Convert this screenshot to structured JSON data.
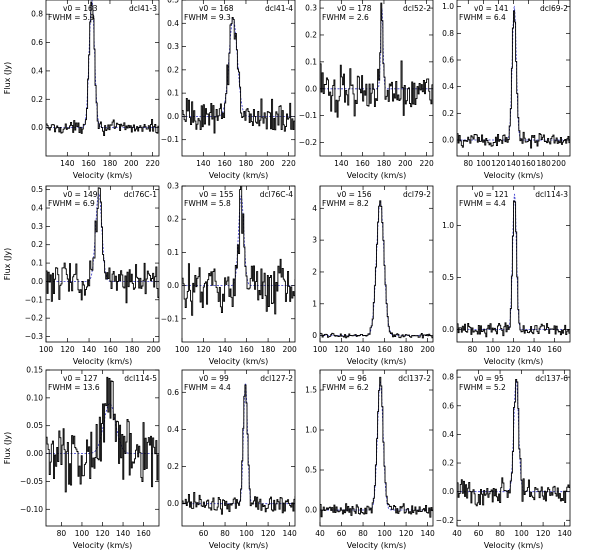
{
  "figure": {
    "ylabel": "Flux (Jy)",
    "xlabel": "Velocity (km/s)",
    "colors": {
      "spectrum": "#000000",
      "fit": "#3333cc",
      "frame": "#000000"
    }
  },
  "chart_data": [
    {
      "type": "line",
      "name": "dcl41-3",
      "v0_label": "v0 = 163",
      "fwhm_label": "FWHM = 5.9",
      "v0": 163,
      "fwhm": 5.9,
      "peak": 0.9,
      "noise": 0.03,
      "base": 0.0,
      "xlim": [
        120,
        226
      ],
      "ylim": [
        -0.2,
        0.9
      ],
      "xticks": [
        140,
        160,
        180,
        200,
        220
      ],
      "yticks": [
        0.0,
        0.2,
        0.4,
        0.6,
        0.8
      ],
      "ytick_labels": [
        "0.0",
        "0.2",
        "0.4",
        "0.6",
        "0.8"
      ],
      "xlabel": "Velocity (km/s)",
      "ylabel": "Flux (Jy)"
    },
    {
      "type": "line",
      "name": "dcl41-4",
      "v0_label": "v0 = 168",
      "fwhm_label": "FWHM = 9.3",
      "v0": 168,
      "fwhm": 9.3,
      "peak": 0.42,
      "noise": 0.05,
      "base": 0.0,
      "xlim": [
        120,
        226
      ],
      "ylim": [
        -0.17,
        0.5
      ],
      "xticks": [
        140,
        160,
        180,
        200,
        220
      ],
      "yticks": [
        -0.1,
        0.0,
        0.1,
        0.2,
        0.3,
        0.4,
        0.5
      ],
      "ytick_labels": [
        "−0.1",
        "0.0",
        "0.1",
        "0.2",
        "0.3",
        "0.4",
        "0.5"
      ],
      "xlabel": "Velocity (km/s)",
      "ylabel": ""
    },
    {
      "type": "line",
      "name": "dcl52-2",
      "v0_label": "v0 = 178",
      "fwhm_label": "FWHM = 2.6",
      "v0": 178,
      "fwhm": 2.6,
      "peak": 0.3,
      "noise": 0.06,
      "base": 0.0,
      "xlim": [
        120,
        226
      ],
      "ylim": [
        -0.25,
        0.33
      ],
      "xticks": [
        140,
        160,
        180,
        200,
        220
      ],
      "yticks": [
        -0.2,
        -0.1,
        0.0,
        0.1,
        0.2,
        0.3
      ],
      "ytick_labels": [
        "−0.2",
        "−0.1",
        "0.0",
        "0.1",
        "0.2",
        "0.3"
      ],
      "xlabel": "Velocity (km/s)",
      "ylabel": ""
    },
    {
      "type": "line",
      "name": "dcl69-2",
      "v0_label": "v0 = 141",
      "fwhm_label": "FWHM = 6.4",
      "v0": 141,
      "fwhm": 6.4,
      "peak": 1.0,
      "noise": 0.04,
      "base": 0.0,
      "xlim": [
        65,
        215
      ],
      "ylim": [
        -0.12,
        1.05
      ],
      "xticks": [
        80,
        100,
        120,
        140,
        160,
        180,
        200
      ],
      "yticks": [
        0.0,
        0.2,
        0.4,
        0.6,
        0.8,
        1.0
      ],
      "ytick_labels": [
        "0.0",
        "0.2",
        "0.4",
        "0.6",
        "0.8",
        "1.0"
      ],
      "xlabel": "Velocity (km/s)",
      "ylabel": ""
    },
    {
      "type": "line",
      "name": "dcl76C-1",
      "v0_label": "v0 = 149",
      "fwhm_label": "FWHM = 6.9",
      "v0": 149,
      "fwhm": 6.9,
      "peak": 0.48,
      "noise": 0.07,
      "base": 0.0,
      "xlim": [
        100,
        205
      ],
      "ylim": [
        -0.33,
        0.52
      ],
      "xticks": [
        100,
        120,
        140,
        160,
        180,
        200
      ],
      "yticks": [
        -0.3,
        -0.2,
        -0.1,
        0.0,
        0.1,
        0.2,
        0.3,
        0.4,
        0.5
      ],
      "ytick_labels": [
        "−0.3",
        "−0.2",
        "−0.1",
        "0.0",
        "0.1",
        "0.2",
        "0.3",
        "0.4",
        "0.5"
      ],
      "xlabel": "Velocity (km/s)",
      "ylabel": "Flux (Jy)"
    },
    {
      "type": "line",
      "name": "dcl76C-4",
      "v0_label": "v0 = 155",
      "fwhm_label": "FWHM = 5.8",
      "v0": 155,
      "fwhm": 5.8,
      "peak": 0.27,
      "noise": 0.05,
      "base": 0.0,
      "xlim": [
        100,
        205
      ],
      "ylim": [
        -0.17,
        0.3
      ],
      "xticks": [
        100,
        120,
        140,
        160,
        180,
        200
      ],
      "yticks": [
        -0.1,
        0.0,
        0.1,
        0.2,
        0.3
      ],
      "ytick_labels": [
        "−0.1",
        "0.0",
        "0.1",
        "0.2",
        "0.3"
      ],
      "xlabel": "Velocity (km/s)",
      "ylabel": ""
    },
    {
      "type": "line",
      "name": "dcl79-2",
      "v0_label": "v0 = 156",
      "fwhm_label": "FWHM = 8.2",
      "v0": 156,
      "fwhm": 8.2,
      "peak": 4.2,
      "noise": 0.05,
      "base": 0.0,
      "xlim": [
        100,
        205
      ],
      "ylim": [
        -0.2,
        4.7
      ],
      "xticks": [
        100,
        120,
        140,
        160,
        180,
        200
      ],
      "yticks": [
        0,
        1,
        2,
        3,
        4
      ],
      "ytick_labels": [
        "0",
        "1",
        "2",
        "3",
        "4"
      ],
      "xlabel": "Velocity (km/s)",
      "ylabel": ""
    },
    {
      "type": "line",
      "name": "dcl114-3",
      "v0_label": "v0 = 121",
      "fwhm_label": "FWHM = 4.4",
      "v0": 121,
      "fwhm": 4.4,
      "peak": 1.3,
      "noise": 0.05,
      "base": 0.0,
      "xlim": [
        65,
        175
      ],
      "ylim": [
        -0.12,
        1.38
      ],
      "xticks": [
        80,
        100,
        120,
        140,
        160
      ],
      "yticks": [
        0.0,
        0.5,
        1.0
      ],
      "ytick_labels": [
        "0.0",
        "0.5",
        "1.0"
      ],
      "xlabel": "Velocity (km/s)",
      "ylabel": ""
    },
    {
      "type": "line",
      "name": "dcl114-5",
      "v0_label": "v0 = 127",
      "fwhm_label": "FWHM = 13.6",
      "v0": 127,
      "fwhm": 13.6,
      "peak": 0.09,
      "noise": 0.04,
      "base": 0.0,
      "xlim": [
        65,
        175
      ],
      "ylim": [
        -0.13,
        0.15
      ],
      "xticks": [
        80,
        100,
        120,
        140,
        160
      ],
      "yticks": [
        -0.1,
        -0.05,
        0.0,
        0.05,
        0.1,
        0.15
      ],
      "ytick_labels": [
        "−0.10",
        "−0.05",
        "0.00",
        "0.05",
        "0.10",
        "0.15"
      ],
      "xlabel": "Velocity (km/s)",
      "ylabel": "Flux (Jy)"
    },
    {
      "type": "line",
      "name": "dcl127-2",
      "v0_label": "v0 = 99",
      "fwhm_label": "FWHM = 4.4",
      "v0": 99,
      "fwhm": 4.4,
      "peak": 0.65,
      "noise": 0.04,
      "base": 0.0,
      "xlim": [
        40,
        145
      ],
      "ylim": [
        -0.12,
        0.72
      ],
      "xticks": [
        60,
        80,
        100,
        120,
        140
      ],
      "yticks": [
        0.0,
        0.2,
        0.4,
        0.6
      ],
      "ytick_labels": [
        "0.0",
        "0.2",
        "0.4",
        "0.6"
      ],
      "xlabel": "Velocity (km/s)",
      "ylabel": ""
    },
    {
      "type": "line",
      "name": "dcl137-2",
      "v0_label": "v0 = 96",
      "fwhm_label": "FWHM = 6.2",
      "v0": 96,
      "fwhm": 6.2,
      "peak": 1.6,
      "noise": 0.05,
      "base": 0.0,
      "xlim": [
        40,
        145
      ],
      "ylim": [
        -0.2,
        1.75
      ],
      "xticks": [
        40,
        60,
        80,
        100,
        120,
        140
      ],
      "yticks": [
        0.0,
        0.5,
        1.0,
        1.5
      ],
      "ytick_labels": [
        "0.0",
        "0.5",
        "1.0",
        "1.5"
      ],
      "xlabel": "Velocity (km/s)",
      "ylabel": ""
    },
    {
      "type": "line",
      "name": "dcl137-6",
      "v0_label": "v0 = 95",
      "fwhm_label": "FWHM = 5.2",
      "v0": 95,
      "fwhm": 5.2,
      "peak": 0.78,
      "noise": 0.06,
      "base": 0.0,
      "xlim": [
        40,
        145
      ],
      "ylim": [
        -0.24,
        0.85
      ],
      "xticks": [
        40,
        60,
        80,
        100,
        120,
        140
      ],
      "yticks": [
        -0.2,
        0.0,
        0.2,
        0.4,
        0.6,
        0.8
      ],
      "ytick_labels": [
        "−0.2",
        "0.0",
        "0.2",
        "0.4",
        "0.6",
        "0.8"
      ],
      "xlabel": "Velocity (km/s)",
      "ylabel": ""
    }
  ]
}
